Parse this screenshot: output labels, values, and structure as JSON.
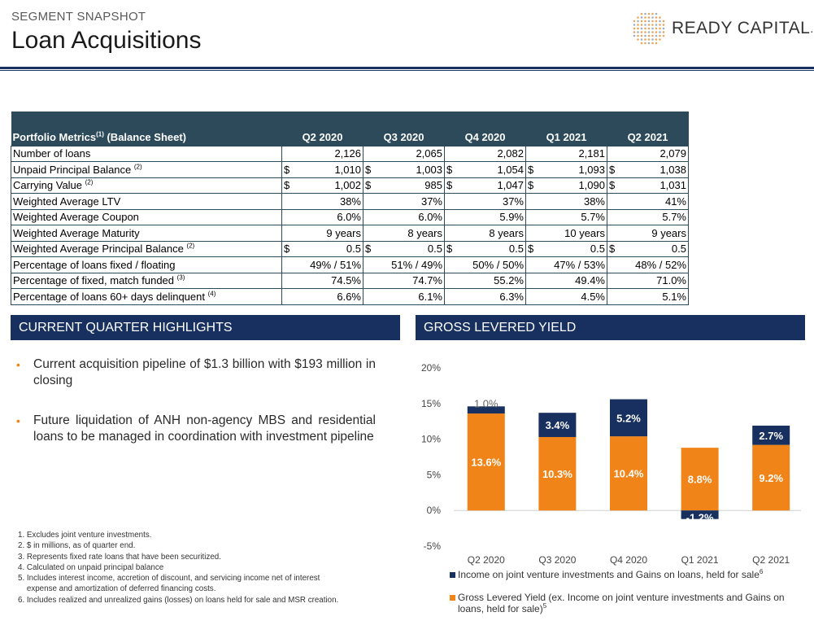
{
  "header": {
    "subtitle": "SEGMENT SNAPSHOT",
    "title": "Loan Acquisitions",
    "logo_text": "READY CAPITAL",
    "logo_mark": "."
  },
  "metrics_table": {
    "header_label": "Portfolio Metrics",
    "header_sup": "(1)",
    "header_suffix": " (Balance Sheet)",
    "columns": [
      "Q2 2020",
      "Q3 2020",
      "Q4 2020",
      "Q1 2021",
      "Q2 2021"
    ],
    "rows": [
      {
        "label": "Number of loans",
        "sup": "",
        "currency": false,
        "values": [
          "2,126",
          "2,065",
          "2,082",
          "2,181",
          "2,079"
        ]
      },
      {
        "label": "Unpaid Principal Balance ",
        "sup": "(2)",
        "currency": true,
        "values": [
          "1,010",
          "1,003",
          "1,054",
          "1,093",
          "1,038"
        ]
      },
      {
        "label": "Carrying Value ",
        "sup": "(2)",
        "currency": true,
        "values": [
          "1,002",
          "985",
          "1,047",
          "1,090",
          "1,031"
        ]
      },
      {
        "label": "Weighted Average LTV",
        "sup": "",
        "currency": false,
        "values": [
          "38%",
          "37%",
          "37%",
          "38%",
          "41%"
        ]
      },
      {
        "label": "Weighted Average Coupon",
        "sup": "",
        "currency": false,
        "values": [
          "6.0%",
          "6.0%",
          "5.9%",
          "5.7%",
          "5.7%"
        ]
      },
      {
        "label": "Weighted Average Maturity",
        "sup": "",
        "currency": false,
        "values": [
          "9 years",
          "8 years",
          "8 years",
          "10 years",
          "9 years"
        ]
      },
      {
        "label": "Weighted Average Principal Balance ",
        "sup": "(2)",
        "currency": true,
        "values": [
          "0.5",
          "0.5",
          "0.5",
          "0.5",
          "0.5"
        ]
      },
      {
        "label": "Percentage of loans fixed / floating",
        "sup": "",
        "currency": false,
        "values": [
          "49% / 51%",
          "51% / 49%",
          "50% / 50%",
          "47% / 53%",
          "48% / 52%"
        ]
      },
      {
        "label": "Percentage of fixed, match funded ",
        "sup": "(3)",
        "currency": false,
        "values": [
          "74.5%",
          "74.7%",
          "55.2%",
          "49.4%",
          "71.0%"
        ]
      },
      {
        "label": "Percentage of loans 60+ days delinquent ",
        "sup": "(4)",
        "currency": false,
        "values": [
          "6.6%",
          "6.1%",
          "6.3%",
          "4.5%",
          "5.1%"
        ]
      }
    ],
    "currency_symbol": "$"
  },
  "highlights": {
    "title": "CURRENT QUARTER HIGHLIGHTS",
    "bullet_char": "•",
    "bullets": [
      "Current acquisition pipeline of $1.3 billion with $193 million in closing",
      "Future liquidation of ANH non-agency MBS and residential loans to be managed in coordination with investment pipeline"
    ]
  },
  "footnotes": [
    "1. Excludes joint venture investments.",
    "2. $ in millions, as of quarter end.",
    "3. Represents fixed rate loans that have been securitized.",
    "4. Calculated on unpaid principal balance",
    "5. Includes interest income, accretion of discount, and servicing income net of interest",
    "    expense and amortization of deferred financing costs.",
    "6. Includes realized and unrealized gains (losses) on loans held for sale and MSR creation."
  ],
  "yield_panel": {
    "title": "GROSS LEVERED YIELD"
  },
  "chart_data": {
    "type": "bar",
    "stacked": true,
    "categories": [
      "Q2 2020",
      "Q3 2020",
      "Q4 2020",
      "Q1 2021",
      "Q2 2021"
    ],
    "series": [
      {
        "name": "Gross Levered Yield (ex. Income on joint venture investments and Gains on loans, held for sale)",
        "name_sup": "5",
        "color": "#f08418",
        "values": [
          13.6,
          10.3,
          10.4,
          8.8,
          9.2
        ],
        "labels": [
          "13.6%",
          "10.3%",
          "10.4%",
          "8.8%",
          "9.2%"
        ]
      },
      {
        "name": "Income on joint venture investments and Gains on loans, held for sale",
        "name_sup": "6",
        "color": "#17305f",
        "values": [
          1.0,
          3.4,
          5.2,
          -1.2,
          2.7
        ],
        "labels": [
          "1.0%",
          "3.4%",
          "5.2%",
          "-1.2%",
          "2.7%"
        ]
      }
    ],
    "ylim": [
      -5,
      20
    ],
    "yticks": [
      20,
      15,
      10,
      5,
      0,
      -5
    ],
    "ytick_labels": [
      "20%",
      "15%",
      "10%",
      "5%",
      "0%",
      "-5%"
    ],
    "legend_position": "bottom"
  }
}
